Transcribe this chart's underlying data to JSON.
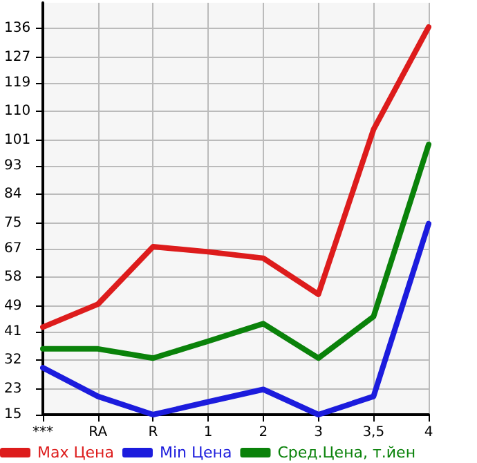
{
  "chart_data": {
    "type": "line",
    "categories": [
      "***",
      "RA",
      "R",
      "1",
      "2",
      "3",
      "3,5",
      "4"
    ],
    "series": [
      {
        "name": "Max Цена",
        "color": "#dd1c1c",
        "values": [
          42.4,
          49.6,
          67.6,
          66,
          64,
          52.7,
          104.3,
          136.4
        ]
      },
      {
        "name": "Min Цена",
        "color": "#1c1cdd",
        "values": [
          29.7,
          20.7,
          15,
          19,
          22.9,
          15,
          20.7,
          74.8
        ]
      },
      {
        "name": "Сред.Цена, т.йен",
        "color": "#0a820a",
        "values": [
          35.6,
          35.6,
          32.7,
          38,
          43.5,
          32.7,
          45.7,
          99.6
        ]
      }
    ],
    "ylim": [
      15,
      144
    ],
    "yticks": [
      15,
      23,
      32,
      41,
      49,
      58,
      67,
      75,
      84,
      93,
      101,
      110,
      119,
      127,
      136
    ],
    "grid": true,
    "legend": "bottom",
    "marker": "none",
    "line_style": "solid"
  }
}
